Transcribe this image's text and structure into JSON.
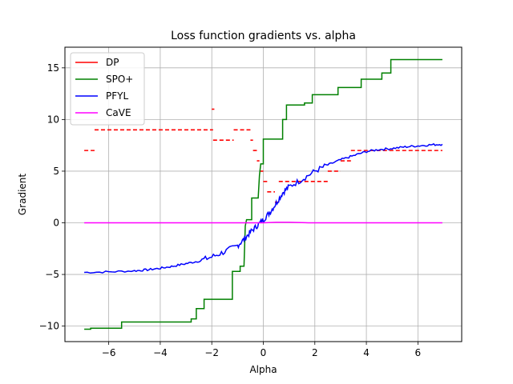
{
  "chart_data": {
    "type": "line",
    "title": "Loss function gradients vs. alpha",
    "xlabel": "Alpha",
    "ylabel": "Gradient",
    "xlim": [
      -7.7,
      7.7
    ],
    "ylim": [
      -11.5,
      17.0
    ],
    "xticks": [
      -6,
      -4,
      -2,
      0,
      2,
      4,
      6
    ],
    "yticks": [
      -10,
      -5,
      0,
      5,
      10,
      15
    ],
    "grid": true,
    "legend_position": "top-left",
    "series": [
      {
        "name": "DP",
        "color": "#ff0000",
        "style": "dashed-segments",
        "segments": [
          {
            "x": [
              -6.95,
              -6.55
            ],
            "y": 7
          },
          {
            "x": [
              -6.55,
              -1.95
            ],
            "y": 9
          },
          {
            "x": [
              -2.0,
              -1.9
            ],
            "y": 11
          },
          {
            "x": [
              -1.95,
              -1.15
            ],
            "y": 8
          },
          {
            "x": [
              -1.15,
              -0.5
            ],
            "y": 9
          },
          {
            "x": [
              -0.5,
              -0.4
            ],
            "y": 8
          },
          {
            "x": [
              -0.4,
              -0.25
            ],
            "y": 7
          },
          {
            "x": [
              -0.25,
              -0.15
            ],
            "y": 6
          },
          {
            "x": [
              -0.15,
              0.0
            ],
            "y": 5
          },
          {
            "x": [
              0.0,
              0.15
            ],
            "y": 4
          },
          {
            "x": [
              0.15,
              0.45
            ],
            "y": 3
          },
          {
            "x": [
              0.45,
              0.6
            ],
            "y": 2
          },
          {
            "x": [
              0.6,
              2.5
            ],
            "y": 4
          },
          {
            "x": [
              2.5,
              3.0
            ],
            "y": 5
          },
          {
            "x": [
              3.0,
              3.4
            ],
            "y": 6
          },
          {
            "x": [
              3.4,
              6.95
            ],
            "y": 7
          }
        ]
      },
      {
        "name": "SPO+",
        "color": "#008000",
        "style": "step",
        "points": [
          [
            -6.95,
            -10.3
          ],
          [
            -6.7,
            -10.3
          ],
          [
            -6.7,
            -10.2
          ],
          [
            -5.5,
            -10.2
          ],
          [
            -5.5,
            -9.6
          ],
          [
            -2.8,
            -9.6
          ],
          [
            -2.8,
            -9.3
          ],
          [
            -2.6,
            -9.3
          ],
          [
            -2.6,
            -8.3
          ],
          [
            -2.3,
            -8.3
          ],
          [
            -2.3,
            -7.4
          ],
          [
            -1.2,
            -7.4
          ],
          [
            -1.2,
            -4.7
          ],
          [
            -0.9,
            -4.7
          ],
          [
            -0.9,
            -4.2
          ],
          [
            -0.75,
            -4.2
          ],
          [
            -0.7,
            -0.3
          ],
          [
            -0.65,
            0.3
          ],
          [
            -0.45,
            0.3
          ],
          [
            -0.45,
            2.4
          ],
          [
            -0.2,
            2.4
          ],
          [
            -0.15,
            4.6
          ],
          [
            -0.1,
            5.7
          ],
          [
            0.0,
            5.7
          ],
          [
            0.0,
            8.1
          ],
          [
            0.75,
            8.1
          ],
          [
            0.75,
            10.0
          ],
          [
            0.9,
            10.0
          ],
          [
            0.9,
            11.4
          ],
          [
            1.6,
            11.4
          ],
          [
            1.6,
            11.6
          ],
          [
            1.9,
            11.6
          ],
          [
            1.9,
            12.4
          ],
          [
            2.9,
            12.4
          ],
          [
            2.9,
            13.1
          ],
          [
            3.8,
            13.1
          ],
          [
            3.8,
            13.9
          ],
          [
            4.6,
            13.9
          ],
          [
            4.6,
            14.5
          ],
          [
            4.95,
            14.5
          ],
          [
            4.95,
            15.8
          ],
          [
            6.95,
            15.8
          ]
        ]
      },
      {
        "name": "PFYL",
        "color": "#0000ff",
        "style": "noisy-line",
        "points": [
          [
            -6.95,
            -4.8
          ],
          [
            -6.0,
            -4.75
          ],
          [
            -5.0,
            -4.65
          ],
          [
            -4.5,
            -4.55
          ],
          [
            -4.0,
            -4.4
          ],
          [
            -3.5,
            -4.2
          ],
          [
            -3.0,
            -3.95
          ],
          [
            -2.5,
            -3.7
          ],
          [
            -2.0,
            -3.3
          ],
          [
            -1.5,
            -2.8
          ],
          [
            -1.0,
            -2.2
          ],
          [
            -0.75,
            -1.6
          ],
          [
            -0.5,
            -0.9
          ],
          [
            -0.25,
            -0.3
          ],
          [
            0.0,
            0.3
          ],
          [
            0.25,
            1.0
          ],
          [
            0.5,
            1.9
          ],
          [
            0.75,
            2.9
          ],
          [
            1.0,
            3.5
          ],
          [
            1.5,
            4.2
          ],
          [
            2.0,
            5.0
          ],
          [
            2.5,
            5.6
          ],
          [
            3.0,
            6.1
          ],
          [
            3.5,
            6.5
          ],
          [
            4.0,
            6.9
          ],
          [
            4.5,
            7.1
          ],
          [
            5.0,
            7.2
          ],
          [
            5.5,
            7.35
          ],
          [
            6.0,
            7.45
          ],
          [
            6.5,
            7.55
          ],
          [
            6.95,
            7.6
          ]
        ]
      },
      {
        "name": "CaVE",
        "color": "#ff00ff",
        "style": "line",
        "points": [
          [
            -6.95,
            0.0
          ],
          [
            0.0,
            0.0
          ],
          [
            0.5,
            0.05
          ],
          [
            1.0,
            0.05
          ],
          [
            1.75,
            0.0
          ],
          [
            1.85,
            0.0
          ],
          [
            6.95,
            0.0
          ]
        ]
      }
    ]
  }
}
